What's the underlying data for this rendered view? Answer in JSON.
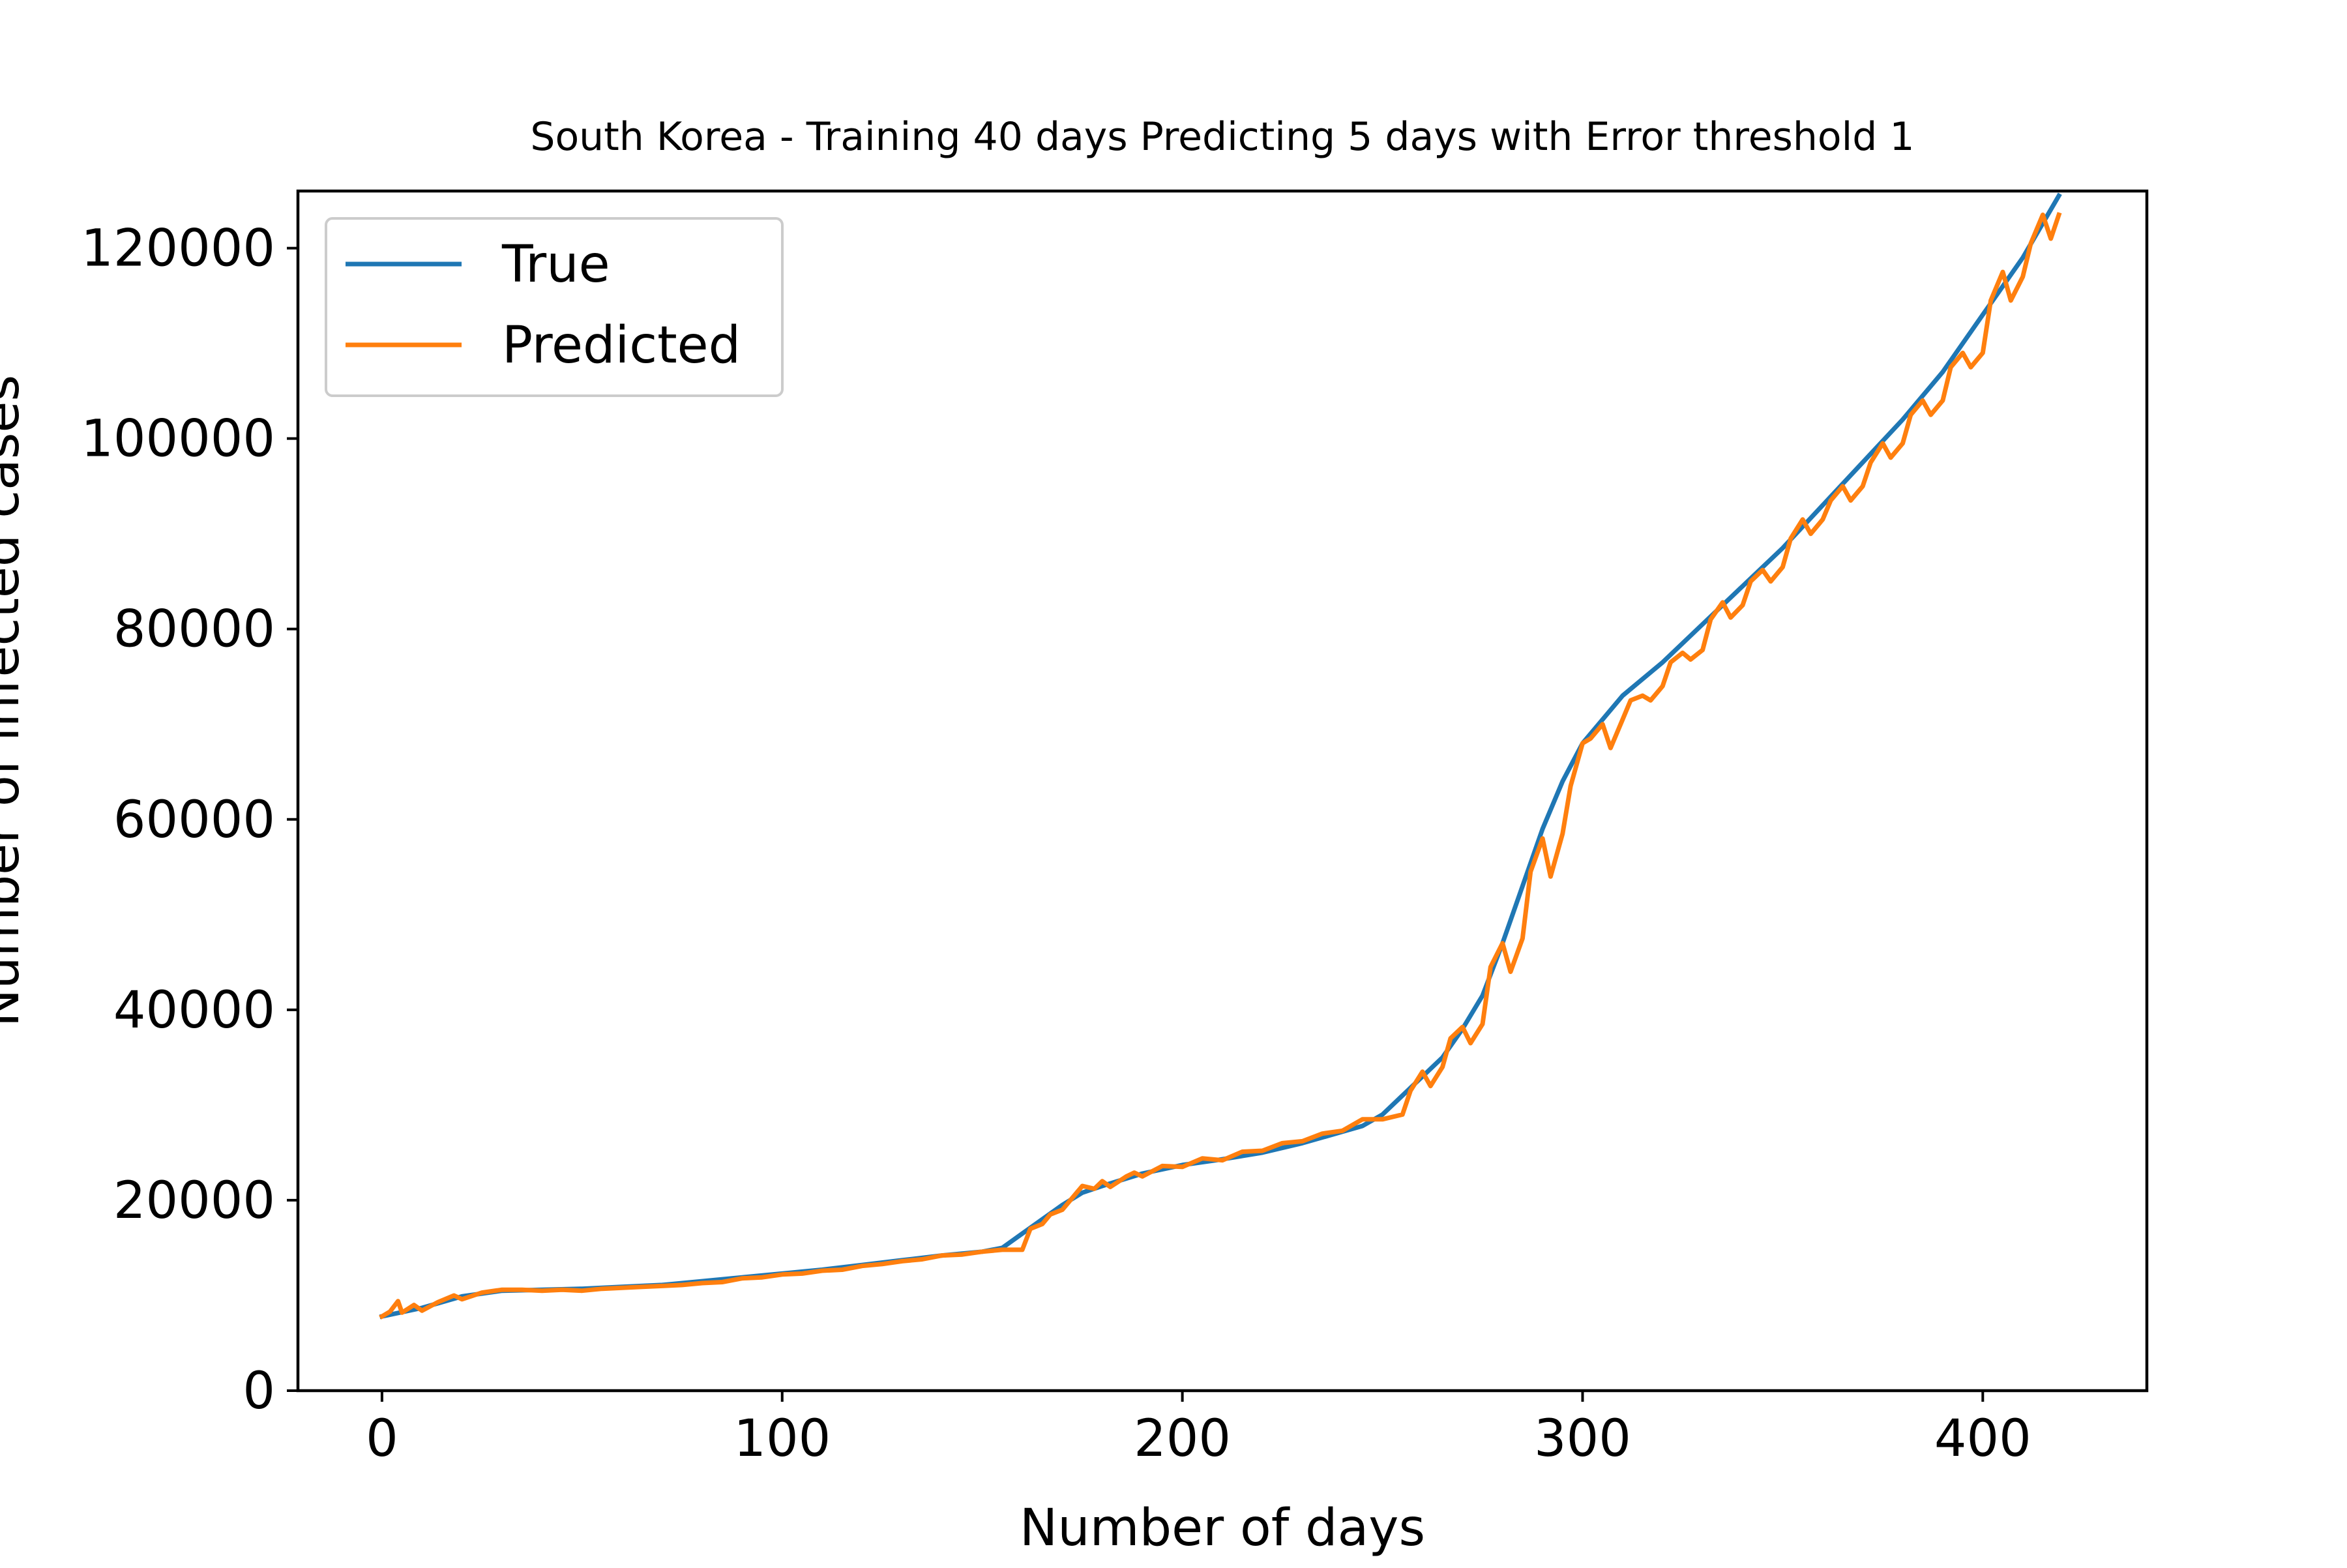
{
  "chart_data": {
    "type": "line",
    "title": "South Korea - Training 40 days Predicting 5 days with Error threshold 1",
    "xlabel": "Number of days",
    "ylabel": "Number of infected cases",
    "xlim": [
      -21,
      441
    ],
    "ylim": [
      0,
      126000
    ],
    "xticks": [
      0,
      100,
      200,
      300,
      400
    ],
    "yticks": [
      0,
      20000,
      40000,
      60000,
      80000,
      100000,
      120000
    ],
    "xtick_labels": [
      "0",
      "100",
      "200",
      "300",
      "400"
    ],
    "ytick_labels": [
      "0",
      "20000",
      "40000",
      "60000",
      "80000",
      "100000",
      "120000"
    ],
    "grid": false,
    "legend_position": "upper-left",
    "series": [
      {
        "name": "True",
        "color": "#1f77b4",
        "points": [
          [
            0,
            7800
          ],
          [
            10,
            8700
          ],
          [
            20,
            9900
          ],
          [
            30,
            10500
          ],
          [
            40,
            10600
          ],
          [
            50,
            10700
          ],
          [
            60,
            10900
          ],
          [
            70,
            11100
          ],
          [
            80,
            11500
          ],
          [
            90,
            11900
          ],
          [
            100,
            12300
          ],
          [
            110,
            12700
          ],
          [
            120,
            13200
          ],
          [
            130,
            13700
          ],
          [
            140,
            14200
          ],
          [
            150,
            14600
          ],
          [
            155,
            15000
          ],
          [
            160,
            16500
          ],
          [
            170,
            19500
          ],
          [
            175,
            20800
          ],
          [
            180,
            21500
          ],
          [
            190,
            22800
          ],
          [
            200,
            23700
          ],
          [
            210,
            24300
          ],
          [
            220,
            25000
          ],
          [
            230,
            26000
          ],
          [
            240,
            27200
          ],
          [
            245,
            27800
          ],
          [
            250,
            29000
          ],
          [
            255,
            31000
          ],
          [
            260,
            33000
          ],
          [
            265,
            35000
          ],
          [
            270,
            38000
          ],
          [
            275,
            41500
          ],
          [
            280,
            47000
          ],
          [
            285,
            53000
          ],
          [
            290,
            59000
          ],
          [
            295,
            64000
          ],
          [
            300,
            68000
          ],
          [
            305,
            70500
          ],
          [
            310,
            73000
          ],
          [
            320,
            76500
          ],
          [
            330,
            80500
          ],
          [
            340,
            84500
          ],
          [
            350,
            88500
          ],
          [
            360,
            93000
          ],
          [
            370,
            97500
          ],
          [
            380,
            102000
          ],
          [
            390,
            107000
          ],
          [
            400,
            113000
          ],
          [
            410,
            119000
          ],
          [
            419,
            125500
          ]
        ]
      },
      {
        "name": "Predicted",
        "color": "#ff7f0e",
        "points": [
          [
            0,
            7800
          ],
          [
            2,
            8300
          ],
          [
            4,
            9400
          ],
          [
            5,
            8200
          ],
          [
            8,
            9000
          ],
          [
            10,
            8400
          ],
          [
            14,
            9300
          ],
          [
            18,
            10000
          ],
          [
            20,
            9600
          ],
          [
            25,
            10300
          ],
          [
            30,
            10600
          ],
          [
            35,
            10600
          ],
          [
            40,
            10500
          ],
          [
            45,
            10600
          ],
          [
            50,
            10500
          ],
          [
            55,
            10700
          ],
          [
            60,
            10800
          ],
          [
            65,
            10900
          ],
          [
            70,
            11000
          ],
          [
            75,
            11100
          ],
          [
            80,
            11300
          ],
          [
            85,
            11400
          ],
          [
            90,
            11800
          ],
          [
            95,
            11900
          ],
          [
            100,
            12200
          ],
          [
            105,
            12300
          ],
          [
            110,
            12600
          ],
          [
            115,
            12700
          ],
          [
            120,
            13100
          ],
          [
            125,
            13300
          ],
          [
            130,
            13600
          ],
          [
            135,
            13800
          ],
          [
            140,
            14200
          ],
          [
            145,
            14300
          ],
          [
            150,
            14600
          ],
          [
            155,
            14800
          ],
          [
            160,
            14800
          ],
          [
            162,
            17000
          ],
          [
            165,
            17500
          ],
          [
            167,
            18500
          ],
          [
            170,
            19000
          ],
          [
            173,
            20500
          ],
          [
            175,
            21500
          ],
          [
            178,
            21200
          ],
          [
            180,
            22000
          ],
          [
            182,
            21400
          ],
          [
            186,
            22500
          ],
          [
            188,
            22900
          ],
          [
            190,
            22500
          ],
          [
            195,
            23600
          ],
          [
            200,
            23500
          ],
          [
            205,
            24400
          ],
          [
            210,
            24200
          ],
          [
            215,
            25100
          ],
          [
            220,
            25200
          ],
          [
            225,
            26000
          ],
          [
            230,
            26200
          ],
          [
            235,
            27000
          ],
          [
            240,
            27300
          ],
          [
            245,
            28500
          ],
          [
            250,
            28500
          ],
          [
            255,
            29000
          ],
          [
            257,
            31500
          ],
          [
            260,
            33500
          ],
          [
            262,
            32000
          ],
          [
            265,
            34000
          ],
          [
            267,
            37000
          ],
          [
            270,
            38200
          ],
          [
            272,
            36500
          ],
          [
            275,
            38500
          ],
          [
            277,
            44500
          ],
          [
            280,
            47000
          ],
          [
            282,
            44000
          ],
          [
            285,
            47500
          ],
          [
            287,
            54500
          ],
          [
            290,
            58000
          ],
          [
            292,
            54000
          ],
          [
            295,
            58500
          ],
          [
            297,
            63500
          ],
          [
            300,
            68000
          ],
          [
            302,
            68500
          ],
          [
            305,
            70000
          ],
          [
            307,
            67500
          ],
          [
            310,
            70500
          ],
          [
            312,
            72500
          ],
          [
            315,
            73000
          ],
          [
            317,
            72500
          ],
          [
            320,
            74000
          ],
          [
            322,
            76500
          ],
          [
            325,
            77500
          ],
          [
            327,
            76800
          ],
          [
            330,
            77800
          ],
          [
            332,
            81000
          ],
          [
            335,
            82800
          ],
          [
            337,
            81200
          ],
          [
            340,
            82500
          ],
          [
            342,
            85000
          ],
          [
            345,
            86200
          ],
          [
            347,
            85000
          ],
          [
            350,
            86500
          ],
          [
            352,
            89500
          ],
          [
            355,
            91500
          ],
          [
            357,
            90000
          ],
          [
            360,
            91500
          ],
          [
            362,
            93500
          ],
          [
            365,
            95000
          ],
          [
            367,
            93500
          ],
          [
            370,
            95000
          ],
          [
            372,
            97500
          ],
          [
            375,
            99500
          ],
          [
            377,
            98000
          ],
          [
            380,
            99500
          ],
          [
            382,
            102500
          ],
          [
            385,
            104000
          ],
          [
            387,
            102500
          ],
          [
            390,
            104000
          ],
          [
            392,
            107500
          ],
          [
            395,
            109000
          ],
          [
            397,
            107500
          ],
          [
            400,
            109000
          ],
          [
            402,
            114500
          ],
          [
            405,
            117500
          ],
          [
            407,
            114500
          ],
          [
            410,
            117000
          ],
          [
            412,
            120500
          ],
          [
            415,
            123500
          ],
          [
            417,
            121000
          ],
          [
            419,
            123500
          ]
        ]
      }
    ]
  }
}
